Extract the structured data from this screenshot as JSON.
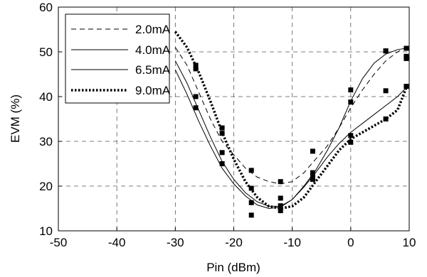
{
  "chart_data": {
    "type": "line",
    "xlabel": "Pin (dBm)",
    "ylabel": "EVM (%)",
    "xlim": [
      -50,
      10
    ],
    "ylim": [
      10,
      60
    ],
    "xticks": [
      -50,
      -40,
      -30,
      -20,
      -10,
      0,
      10
    ],
    "yticks": [
      10,
      20,
      30,
      40,
      50,
      60
    ],
    "grid": true,
    "legend_position": "top-left",
    "series": [
      {
        "name": "2.0mA",
        "line_style": "dashed",
        "curve": [
          [
            -30,
            51
          ],
          [
            -28,
            47
          ],
          [
            -26,
            41
          ],
          [
            -24,
            35
          ],
          [
            -22,
            30
          ],
          [
            -20,
            27
          ],
          [
            -18,
            24
          ],
          [
            -16,
            22
          ],
          [
            -14,
            21
          ],
          [
            -12,
            20.5
          ],
          [
            -10,
            21
          ],
          [
            -8,
            23
          ],
          [
            -6,
            26
          ],
          [
            -4,
            29
          ],
          [
            -2,
            33
          ],
          [
            0,
            37.5
          ],
          [
            2,
            41.5
          ],
          [
            4,
            45
          ],
          [
            6,
            48
          ],
          [
            8,
            50
          ],
          [
            9.5,
            51
          ]
        ],
        "markers": [
          [
            -26.5,
            47
          ],
          [
            -22,
            33
          ],
          [
            -17,
            23.5
          ],
          [
            -12,
            21
          ],
          [
            -6.5,
            27.8
          ],
          [
            0,
            41.5
          ],
          [
            6,
            50.2
          ],
          [
            9.5,
            50.8
          ]
        ]
      },
      {
        "name": "4.0mA",
        "line_style": "solid",
        "curve": [
          [
            -30,
            48
          ],
          [
            -28,
            43
          ],
          [
            -26,
            37
          ],
          [
            -24,
            31
          ],
          [
            -22,
            25.5
          ],
          [
            -20,
            21.5
          ],
          [
            -18,
            18.5
          ],
          [
            -16,
            16.5
          ],
          [
            -14,
            15.5
          ],
          [
            -12,
            15.5
          ],
          [
            -10,
            17
          ],
          [
            -8,
            20
          ],
          [
            -6,
            23.5
          ],
          [
            -4,
            28
          ],
          [
            -2,
            33
          ],
          [
            0,
            39
          ],
          [
            2,
            44
          ],
          [
            4,
            47.5
          ],
          [
            6,
            49.5
          ],
          [
            8,
            50.5
          ],
          [
            9.5,
            50.8
          ]
        ],
        "markers": [
          [
            -26.5,
            40
          ],
          [
            -22,
            27.5
          ],
          [
            -17,
            19.5
          ],
          [
            -12,
            17.3
          ],
          [
            -6.5,
            23
          ],
          [
            0,
            38.8
          ],
          [
            6,
            50.2
          ],
          [
            9.5,
            49
          ]
        ]
      },
      {
        "name": "6.5mA",
        "line_style": "solid",
        "curve": [
          [
            -30,
            46
          ],
          [
            -28,
            40.5
          ],
          [
            -26,
            34.5
          ],
          [
            -24,
            29
          ],
          [
            -22,
            24
          ],
          [
            -20,
            20.5
          ],
          [
            -18,
            17.8
          ],
          [
            -16,
            15.8
          ],
          [
            -14,
            15
          ],
          [
            -12,
            15.3
          ],
          [
            -10,
            17
          ],
          [
            -8,
            19.8
          ],
          [
            -6,
            23
          ],
          [
            -4,
            26.5
          ],
          [
            -2,
            29.5
          ],
          [
            0,
            32
          ],
          [
            2,
            34
          ],
          [
            4,
            36
          ],
          [
            6,
            38
          ],
          [
            8,
            40
          ],
          [
            9.5,
            42
          ]
        ],
        "markers": [
          [
            -26.5,
            37.5
          ],
          [
            -22,
            25
          ],
          [
            -17,
            16.3
          ],
          [
            -12,
            15.6
          ],
          [
            -6.5,
            22.3
          ],
          [
            0,
            31.3
          ],
          [
            6,
            41.3
          ],
          [
            9.5,
            42.3
          ]
        ]
      },
      {
        "name": "9.0mA",
        "line_style": "dotted-bold",
        "curve": [
          [
            -30,
            54.5
          ],
          [
            -28,
            51
          ],
          [
            -26,
            45.5
          ],
          [
            -24,
            39
          ],
          [
            -22,
            32
          ],
          [
            -20,
            26
          ],
          [
            -18,
            21
          ],
          [
            -16,
            17.5
          ],
          [
            -14,
            15.5
          ],
          [
            -12,
            15
          ],
          [
            -10,
            15.5
          ],
          [
            -8,
            17.5
          ],
          [
            -6,
            21
          ],
          [
            -4,
            24.5
          ],
          [
            -2,
            28
          ],
          [
            0,
            30.5
          ],
          [
            2,
            32
          ],
          [
            4,
            33.5
          ],
          [
            6,
            35
          ],
          [
            8,
            37
          ],
          [
            9.5,
            42
          ]
        ],
        "markers": [
          [
            -26.5,
            46.2
          ],
          [
            -22,
            31.8
          ],
          [
            -17,
            13.5
          ],
          [
            -12,
            14.5
          ],
          [
            -6.5,
            21.5
          ],
          [
            0,
            29.8
          ],
          [
            6,
            35
          ],
          [
            9.5,
            48.5
          ]
        ]
      }
    ]
  }
}
